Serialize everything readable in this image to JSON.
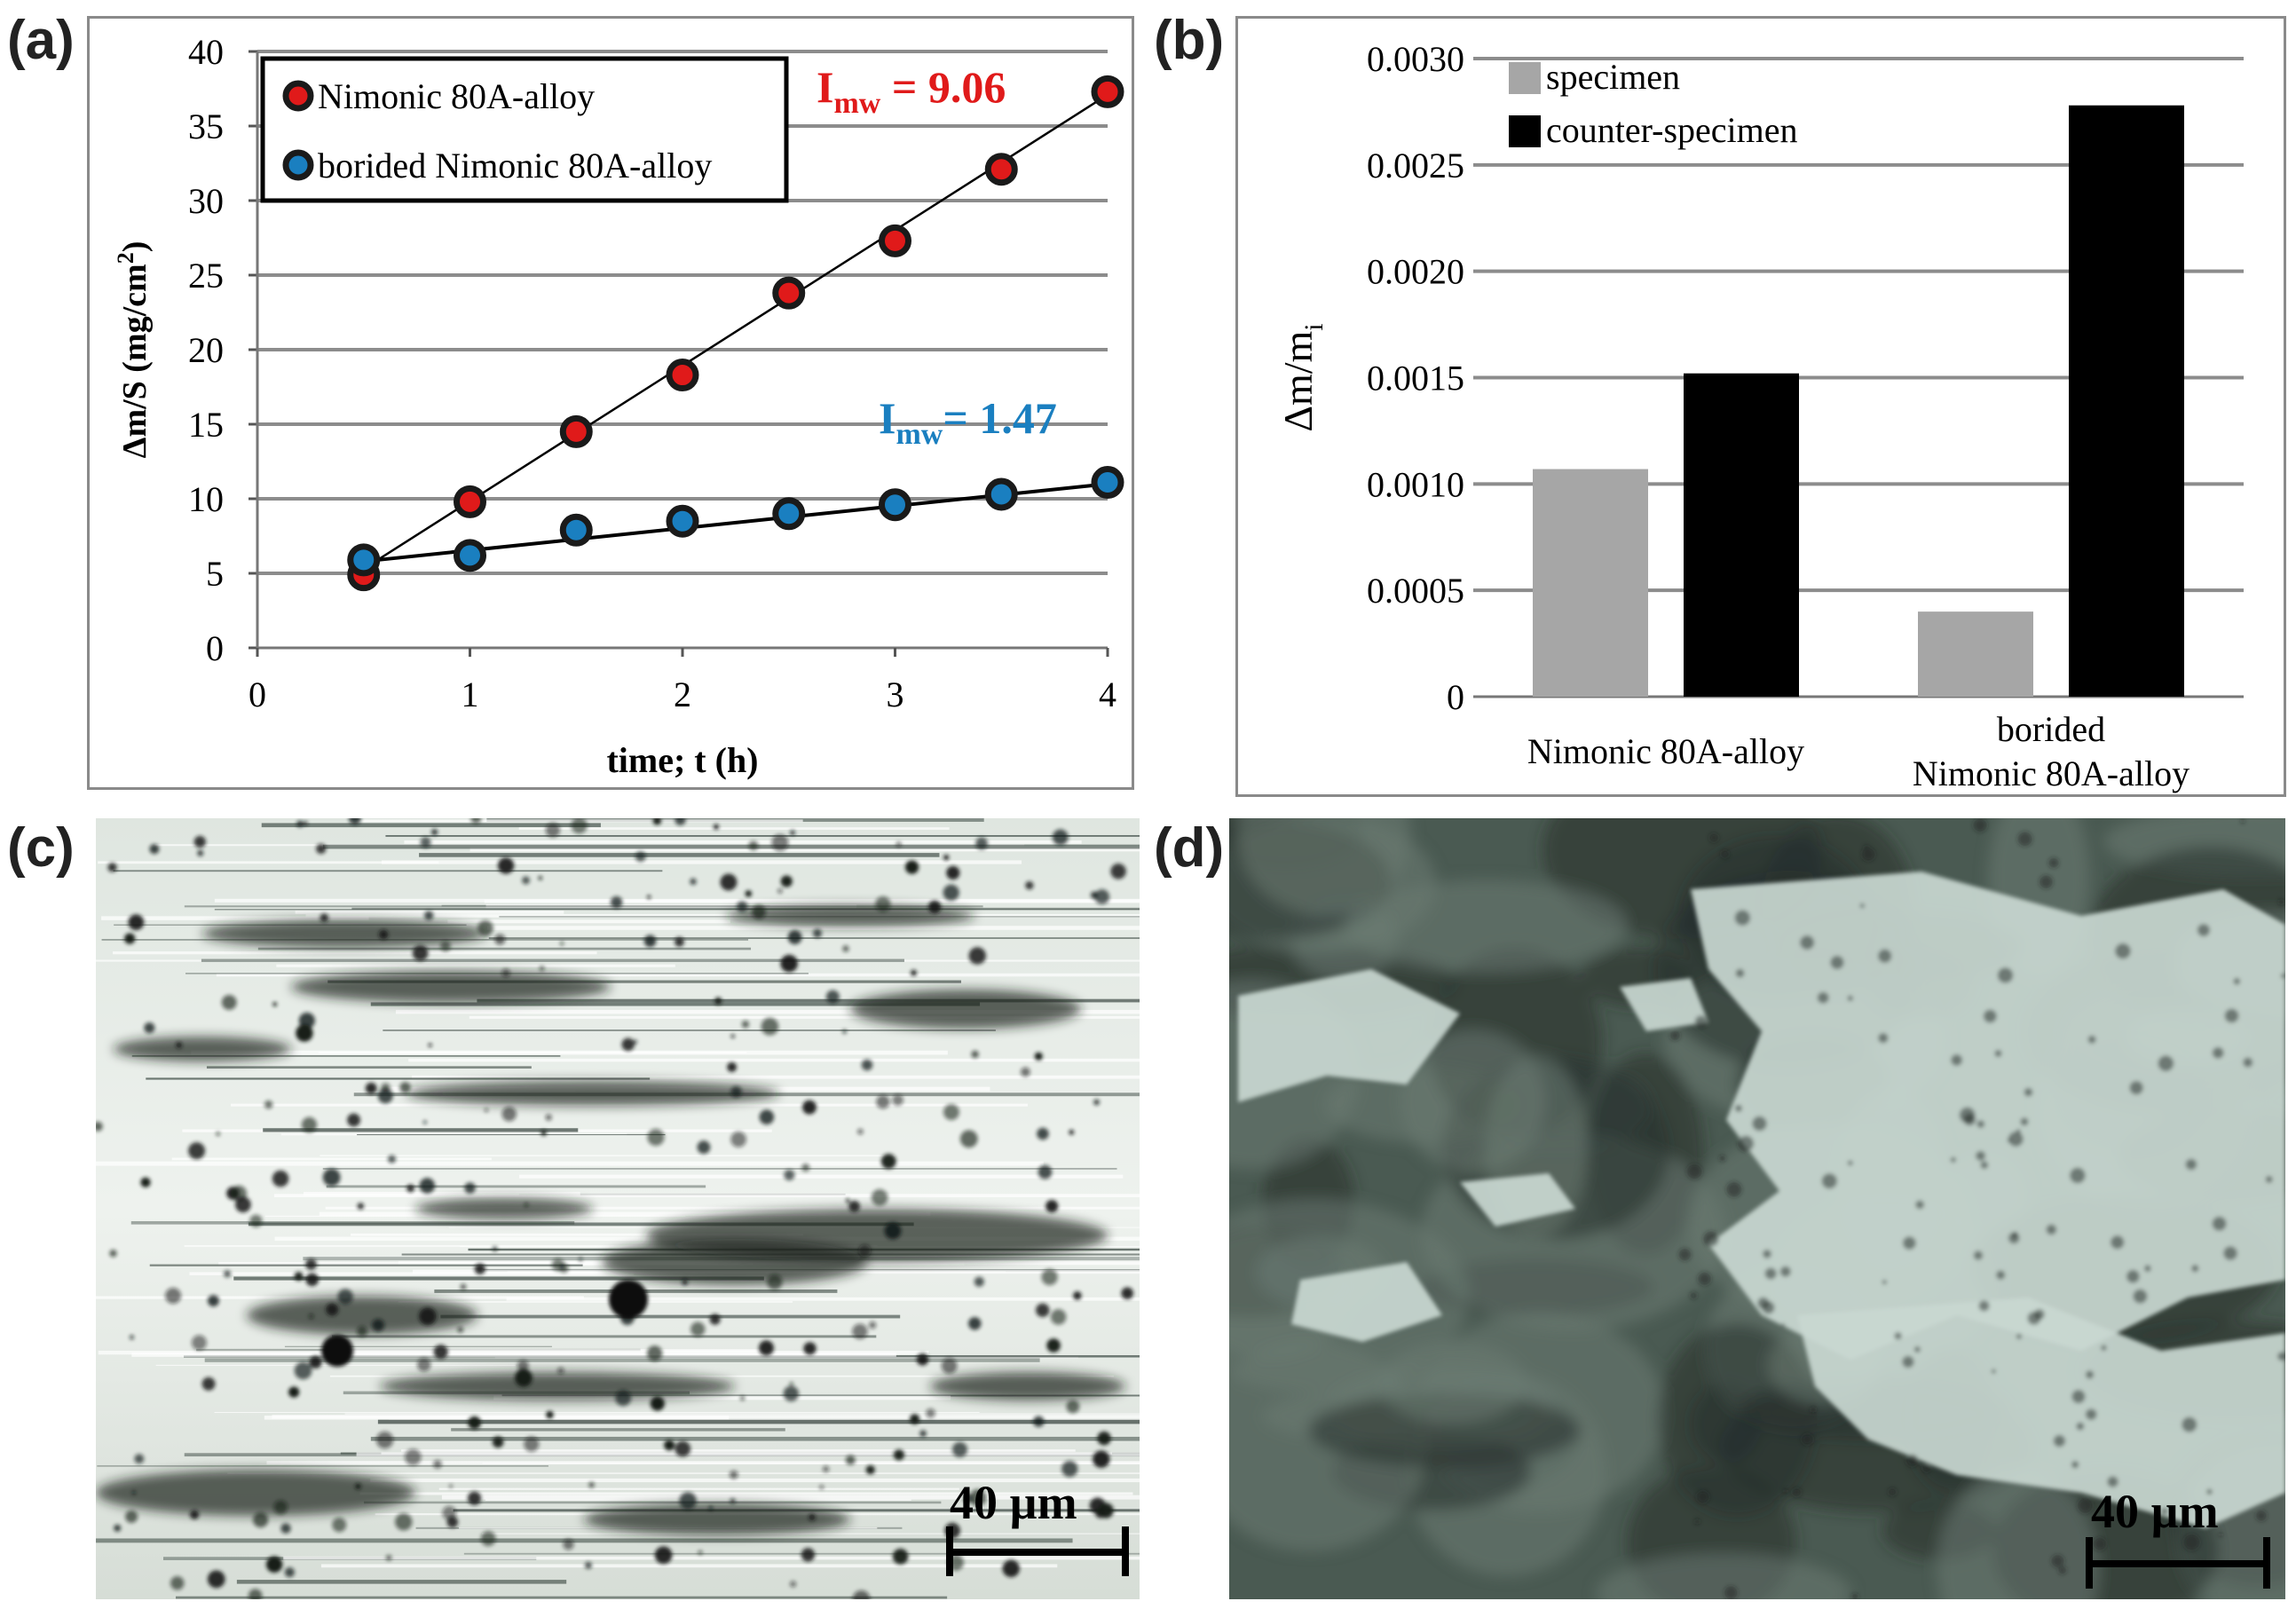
{
  "panels": {
    "a": {
      "label": "(a)"
    },
    "b": {
      "label": "(b)"
    },
    "c": {
      "label": "(c)",
      "scale_bar": "40 µm",
      "image_desc": "optical-micrograph-worn-surface"
    },
    "d": {
      "label": "(d)",
      "scale_bar": "40 µm",
      "image_desc": "optical-micrograph-worn-surface-borided"
    }
  },
  "colors": {
    "red": "#e01a1a",
    "blue": "#1a7fc0",
    "gray": "#a6a6a6",
    "black": "#000000",
    "grid": "#8c8c8c"
  },
  "chart_data": [
    {
      "type": "line",
      "xlabel": "time; t (h)",
      "ylabel": "Δm/S (mg/cm²)",
      "ylabel_main": "Δm/S  (mg/cm",
      "ylabel_sup": "2",
      "ylabel_end": ")",
      "xlim": [
        0,
        4
      ],
      "ylim": [
        0,
        40
      ],
      "xticks": [
        0,
        1,
        2,
        3,
        4
      ],
      "yticks": [
        0,
        5,
        10,
        15,
        20,
        25,
        30,
        35,
        40
      ],
      "grid": "horizontal",
      "legend": "top-left",
      "series": [
        {
          "name": "Nimonic 80A-alloy",
          "color": "#e01a1a",
          "x": [
            0.5,
            1.0,
            1.5,
            2.0,
            2.5,
            3.0,
            3.5,
            4.0
          ],
          "y": [
            4.9,
            9.8,
            14.5,
            18.3,
            23.8,
            27.3,
            32.1,
            37.3
          ],
          "fit": {
            "x0": 0.5,
            "y0": 5.3,
            "x1": 4.0,
            "y1": 37.1
          },
          "annotation": {
            "main": "I",
            "sub": "mw",
            "rest": " = 9.06"
          }
        },
        {
          "name": "borided Nimonic 80A-alloy",
          "color": "#1a7fc0",
          "x": [
            0.5,
            1.0,
            1.5,
            2.0,
            2.5,
            3.0,
            3.5,
            4.0
          ],
          "y": [
            5.9,
            6.2,
            7.9,
            8.5,
            9.0,
            9.6,
            10.3,
            11.1
          ],
          "fit": {
            "x0": 0.5,
            "y0": 5.8,
            "x1": 4.0,
            "y1": 11.0
          },
          "annotation": {
            "main": "I",
            "sub": "mw",
            "rest": "= 1.47"
          }
        }
      ]
    },
    {
      "type": "bar",
      "ylabel": "Δm/mi",
      "ylabel_main": "Δm/m",
      "ylabel_sub": "i",
      "ylim": [
        0,
        0.003
      ],
      "yticks": [
        0,
        0.0005,
        0.001,
        0.0015,
        0.002,
        0.0025,
        0.003
      ],
      "ytick_labels": [
        "0",
        "0.0005",
        "0.0010",
        "0.0015",
        "0.0020",
        "0.0025",
        "0.0030"
      ],
      "grid": "horizontal",
      "legend": "top-left",
      "categories": [
        [
          "Nimonic 80A-alloy"
        ],
        [
          "borided",
          "Nimonic 80A-alloy"
        ]
      ],
      "series": [
        {
          "name": "specimen",
          "color": "#a6a6a6",
          "values": [
            0.00107,
            0.0004
          ]
        },
        {
          "name": "counter-specimen",
          "color": "#000000",
          "values": [
            0.00152,
            0.00278
          ]
        }
      ]
    }
  ]
}
